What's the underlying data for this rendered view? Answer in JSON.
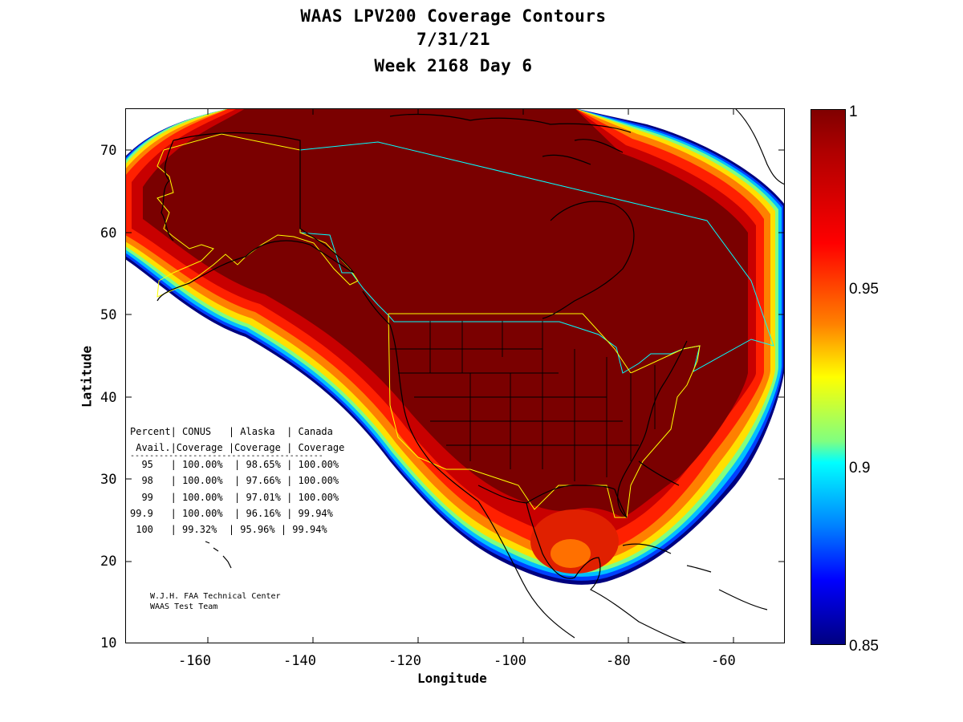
{
  "title": {
    "line1": "WAAS LPV200 Coverage Contours",
    "line2": "7/31/21",
    "line3": "Week 2168 Day 6"
  },
  "axes": {
    "xlabel": "Longitude",
    "ylabel": "Latitude",
    "xticks": [
      "-160",
      "-140",
      "-120",
      "-100",
      "-80",
      "-60"
    ],
    "yticks": [
      "70",
      "60",
      "50",
      "40",
      "30",
      "20",
      "10"
    ],
    "xlim": [
      -175,
      -50
    ],
    "ylim": [
      10,
      75
    ]
  },
  "colorbar": {
    "ticks": [
      "1",
      "0.95",
      "0.9",
      "0.85"
    ],
    "colormap": "jet",
    "range": [
      0.85,
      1
    ]
  },
  "stats_table": {
    "header1": "Percent| CONUS   | Alaska  | Canada",
    "header2": " Avail.|Coverage |Coverage | Coverage",
    "rule": "----------------------------------------",
    "rows": [
      "  95   | 100.00%  | 98.65% | 100.00%",
      "  98   | 100.00%  | 97.66% | 100.00%",
      "  99   | 100.00%  | 97.01% | 100.00%",
      "99.9   | 100.00%  | 96.16% | 99.94%",
      " 100   | 99.32%  | 95.96% | 99.94%"
    ]
  },
  "credit": {
    "line1": "W.J.H. FAA Technical Center",
    "line2": "WAAS Test Team"
  },
  "colors": {
    "core": "#7a0000",
    "state_lines": "#000000",
    "conus_boundary": "#ffff00",
    "canada_boundary": "#00ffff"
  }
}
